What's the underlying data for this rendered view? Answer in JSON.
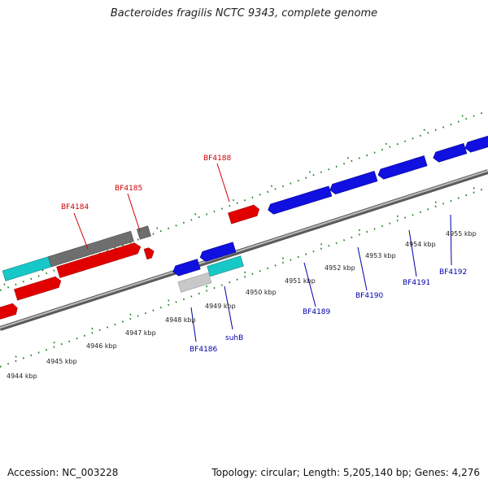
{
  "title": "Bacteroides fragilis NCTC 9343, complete genome",
  "footer": {
    "accession": "Accession: NC_003228",
    "summary": "Topology: circular; Length: 5,205,140 bp; Genes: 4,276"
  },
  "colors": {
    "forward_label": "#cc0000",
    "reverse_label": "#0000aa",
    "ruler_tick": "#1a7f1a",
    "backbone": "#888888",
    "red_gene": "#e00000",
    "blue_gene": "#1010e0",
    "cyan_gene": "#18c8c8",
    "gray_gene": "#6e6e6e",
    "lightgray_gene": "#c8c8c8"
  },
  "ruler_labels": [
    "4944 kbp",
    "4945 kbp",
    "4946 kbp",
    "4947 kbp",
    "4948 kbp",
    "4949 kbp",
    "4950 kbp",
    "4951 kbp",
    "4952 kbp",
    "4953 kbp",
    "4954 kbp",
    "4955 kbp"
  ],
  "gene_labels": {
    "forward": [
      "BF4184",
      "BF4185",
      "BF4188"
    ],
    "reverse": [
      "BF4186",
      "suhB",
      "BF4189",
      "BF4190",
      "BF4191",
      "BF4192"
    ]
  }
}
